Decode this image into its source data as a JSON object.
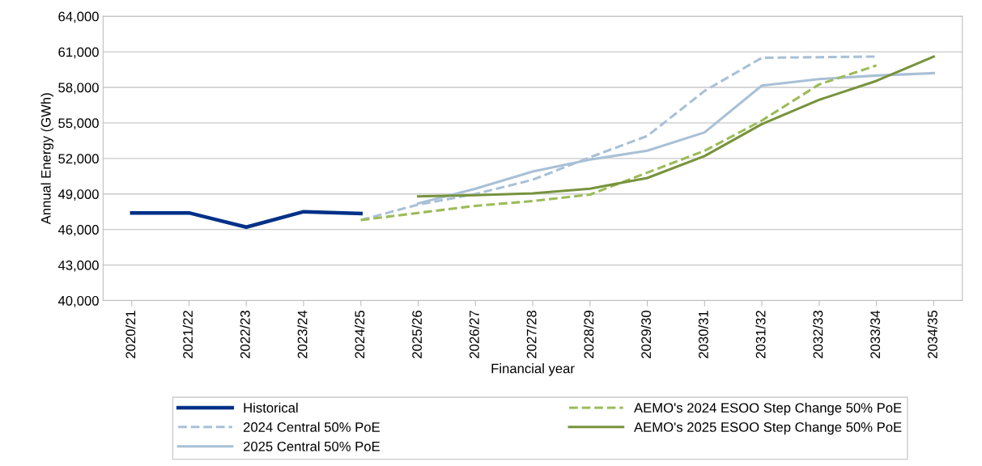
{
  "chart_data": {
    "type": "line",
    "xlabel": "Financial year",
    "ylabel": "Annual Energy (GWh)",
    "categories": [
      "2020/21",
      "2021/22",
      "2022/23",
      "2023/24",
      "2024/25",
      "2025/26",
      "2026/27",
      "2027/28",
      "2028/29",
      "2029/30",
      "2030/31",
      "2031/32",
      "2032/33",
      "2033/34",
      "2034/35"
    ],
    "series": [
      {
        "name": "Historical",
        "color": "#003087",
        "line_style": "solid",
        "values": [
          47400,
          47400,
          46200,
          47500,
          47350,
          null,
          null,
          null,
          null,
          null,
          null,
          null,
          null,
          null,
          null
        ]
      },
      {
        "name": "2024 Central 50% PoE",
        "color": "#a9c0d6",
        "line_style": "dashed",
        "values": [
          null,
          null,
          null,
          null,
          46800,
          48100,
          49000,
          50200,
          52100,
          53900,
          57700,
          60500,
          60550,
          60600,
          null
        ]
      },
      {
        "name": "2025 Central 50% PoE",
        "color": "#a9c0d6",
        "line_style": "solid",
        "values": [
          null,
          null,
          null,
          null,
          null,
          48200,
          49450,
          50900,
          51900,
          52650,
          54200,
          58150,
          58700,
          59000,
          59200
        ]
      },
      {
        "name": "AEMO's 2024 ESOO Step Change 50% PoE",
        "color": "#9bbb59",
        "line_style": "dashed",
        "values": [
          null,
          null,
          null,
          null,
          46800,
          47400,
          48000,
          48400,
          48950,
          50800,
          52650,
          55200,
          58250,
          59850,
          null
        ]
      },
      {
        "name": "AEMO's 2025 ESOO Step Change 50% PoE",
        "color": "#77933c",
        "line_style": "solid",
        "values": [
          null,
          null,
          null,
          null,
          null,
          48800,
          48900,
          49050,
          49450,
          50350,
          52200,
          54900,
          56950,
          58550,
          60600
        ]
      }
    ],
    "ylim": [
      40000,
      64000
    ],
    "yticks": [
      {
        "value": 40000,
        "label": "40,000"
      },
      {
        "value": 43000,
        "label": "43,000"
      },
      {
        "value": 46000,
        "label": "46,000"
      },
      {
        "value": 49000,
        "label": "49,000"
      },
      {
        "value": 52000,
        "label": "52,000"
      },
      {
        "value": 55000,
        "label": "55,000"
      },
      {
        "value": 58000,
        "label": "58,000"
      },
      {
        "value": 61000,
        "label": "61,000"
      },
      {
        "value": 64000,
        "label": "64,000"
      }
    ],
    "grid": "y",
    "legend": "bottom",
    "marker": "none"
  }
}
